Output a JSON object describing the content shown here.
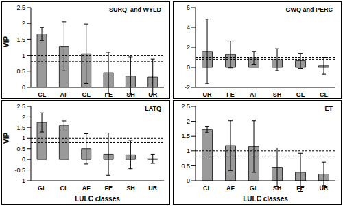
{
  "chart_data": [
    {
      "type": "bar",
      "title": "SURQ  and WYLD",
      "ylabel": "VIP",
      "categories": [
        "CL",
        "AF",
        "GL",
        "FE",
        "SH",
        "UR"
      ],
      "values": [
        1.67,
        1.28,
        1.05,
        0.45,
        0.35,
        0.32
      ],
      "errors": [
        0.2,
        0.77,
        0.93,
        0.65,
        0.6,
        0.56
      ],
      "color": "#9a9a9a",
      "ylim": [
        0,
        2.5
      ],
      "yticks": [
        0,
        0.5,
        1,
        1.5,
        2,
        2.5
      ],
      "reference_lines": [
        0.8,
        1
      ]
    },
    {
      "type": "bar",
      "title": "GWQ and PERC",
      "categories": [
        "UR",
        "FE",
        "AF",
        "SH",
        "GL",
        "CL"
      ],
      "values": [
        1.6,
        1.3,
        0.95,
        0.75,
        0.65,
        0.15
      ],
      "errors": [
        3.25,
        1.35,
        0.65,
        1.1,
        0.75,
        0.85
      ],
      "color": "#9a9a9a",
      "ylim": [
        -2,
        6
      ],
      "yticks": [
        -2,
        0,
        2,
        4,
        6
      ],
      "reference_lines": [
        0.8,
        1
      ]
    },
    {
      "type": "bar",
      "title": "LATQ",
      "ylabel": "VIP",
      "xlabel": "LULC classes",
      "categories": [
        "GL",
        "CL",
        "AF",
        "FE",
        "SH",
        "UR"
      ],
      "values": [
        1.75,
        1.6,
        0.5,
        0.25,
        0.22,
        0.03
      ],
      "errors": [
        0.45,
        0.22,
        0.72,
        1.0,
        0.66,
        0.22
      ],
      "color": "#9a9a9a",
      "ylim": [
        -1,
        2.5
      ],
      "yticks": [
        -1,
        -0.5,
        0,
        0.5,
        1,
        1.5,
        2,
        2.5
      ],
      "reference_lines": [
        0.8,
        1
      ]
    },
    {
      "type": "bar",
      "title": "ET",
      "xlabel": "LULC classes",
      "categories": [
        "CL",
        "AF",
        "GL",
        "SH",
        "FE",
        "UR"
      ],
      "values": [
        1.72,
        1.18,
        1.15,
        0.45,
        0.28,
        0.22
      ],
      "errors": [
        0.1,
        0.84,
        0.87,
        0.65,
        0.64,
        0.4
      ],
      "color": "#9a9a9a",
      "ylim": [
        0,
        2.5
      ],
      "yticks": [
        0,
        0.5,
        1,
        1.5,
        2,
        2.5
      ],
      "reference_lines": [
        0.8,
        1
      ]
    }
  ]
}
